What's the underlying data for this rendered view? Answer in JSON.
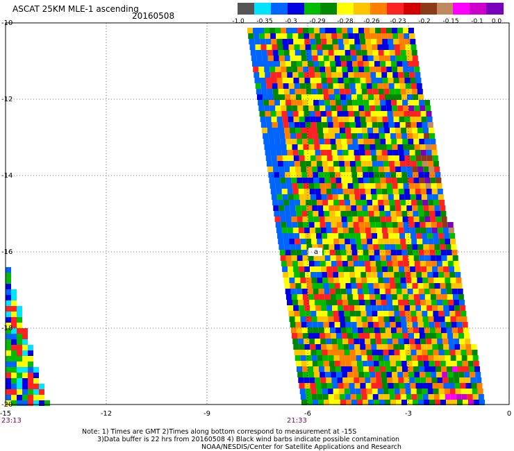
{
  "header": {
    "title": "ASCAT 25KM MLE-1 ascending",
    "date": "20160508"
  },
  "colorbar": {
    "colors": [
      "#555555",
      "#00e4ff",
      "#0064ff",
      "#0000e0",
      "#00bb00",
      "#008800",
      "#ffff00",
      "#ffc400",
      "#ff7f00",
      "#ff2222",
      "#d40000",
      "#8b3a1a",
      "#c08a5e",
      "#ff00ff",
      "#cc00cc",
      "#7a00bb"
    ],
    "tick_labels": [
      "-1.0",
      "-0.35",
      "-0.3",
      "-0.29",
      "-0.28",
      "-0.26",
      "-0.23",
      "-0.2",
      "-0.15",
      "-0.1",
      "0.0"
    ]
  },
  "map": {
    "lon_ticks": [
      "-15",
      "-12",
      "-9",
      "-6",
      "-3",
      "0"
    ],
    "lat_ticks": [
      "-10",
      "-12",
      "-14",
      "-16",
      "-18",
      "-20"
    ],
    "lon_range": [
      -15,
      0
    ],
    "lat_range": [
      -20,
      -10
    ],
    "gridlines": true,
    "swath_labels": [
      {
        "text": "23:13",
        "lon": -15
      },
      {
        "text": "21:33",
        "lon": -6
      }
    ],
    "marker_label": "a"
  },
  "notes": {
    "line1": "Note: 1) Times are GMT 2)Times along bottom correspond to measurement at -15S",
    "line2": "3)Data buffer is 22 hrs from 20160508 4) Black wind barbs indicate possible contamination",
    "line3": "NOAA/NESDIS/Center for Satellite Applications and Research"
  }
}
